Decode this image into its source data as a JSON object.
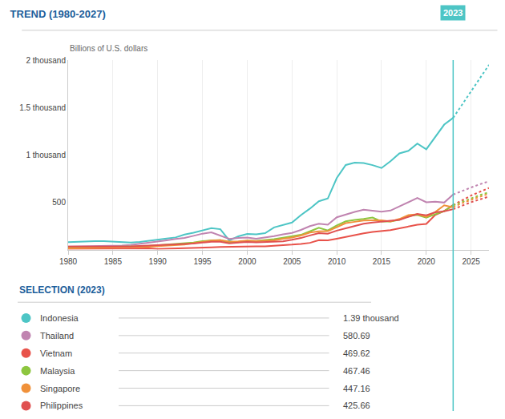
{
  "chart_data": {
    "type": "line",
    "title": "TREND (1980-2027)",
    "title_color": "#1B5E9B",
    "subtitle": "Billions of U.S. dollars",
    "xlim": [
      1980,
      2027
    ],
    "xticks": [
      1980,
      1985,
      1990,
      1995,
      2000,
      2005,
      2010,
      2015,
      2020,
      2025
    ],
    "ylim": [
      0,
      2000
    ],
    "yticks": [
      500,
      {
        "value": 1000,
        "label": "1 thousand"
      },
      {
        "value": 1500,
        "label": "1.5 thousand"
      },
      {
        "value": 2000,
        "label": "2 thousand"
      }
    ],
    "grid": "x",
    "vertical_line": {
      "x": 2023,
      "label": "2023",
      "color": "#4DC5C5"
    },
    "series": [
      {
        "name": "Indonesia",
        "color": "#4DC5C5",
        "line_style": "solid",
        "x": [
          1980,
          1981,
          1982,
          1983,
          1984,
          1985,
          1986,
          1987,
          1988,
          1989,
          1990,
          1991,
          1992,
          1993,
          1994,
          1995,
          1996,
          1997,
          1998,
          1999,
          2000,
          2001,
          2002,
          2003,
          2004,
          2005,
          2006,
          2007,
          2008,
          2009,
          2010,
          2011,
          2012,
          2013,
          2014,
          2015,
          2016,
          2017,
          2018,
          2019,
          2020,
          2021,
          2022,
          2023
        ],
        "values": [
          78,
          83,
          88,
          90,
          89,
          85,
          76,
          74,
          80,
          94,
          107,
          116,
          128,
          158,
          177,
          202,
          227,
          215,
          96,
          140,
          165,
          160,
          173,
          234,
          257,
          285,
          364,
          432,
          510,
          539,
          755,
          893,
          918,
          913,
          891,
          861,
          932,
          1015,
          1042,
          1119,
          1059,
          1186,
          1319,
          1390
        ]
      },
      {
        "name": "Indonesia",
        "color": "#4DC5C5",
        "line_style": "dotted",
        "x": [
          2023,
          2024,
          2025,
          2026,
          2027
        ],
        "values": [
          1390,
          1530,
          1680,
          1820,
          1950
        ]
      },
      {
        "name": "Thailand",
        "color": "#C084B0",
        "line_style": "solid",
        "x": [
          1980,
          1981,
          1982,
          1983,
          1984,
          1985,
          1986,
          1987,
          1988,
          1989,
          1990,
          1991,
          1992,
          1993,
          1994,
          1995,
          1996,
          1997,
          1998,
          1999,
          2000,
          2001,
          2002,
          2003,
          2004,
          2005,
          2006,
          2007,
          2008,
          2009,
          2010,
          2011,
          2012,
          2013,
          2014,
          2015,
          2016,
          2017,
          2018,
          2019,
          2020,
          2021,
          2022,
          2023
        ],
        "values": [
          32,
          34,
          36,
          38,
          41,
          38,
          43,
          49,
          60,
          70,
          85,
          98,
          112,
          122,
          145,
          168,
          182,
          150,
          112,
          122,
          126,
          115,
          126,
          142,
          161,
          176,
          207,
          247,
          272,
          263,
          341,
          370,
          397,
          420,
          407,
          400,
          412,
          456,
          505,
          544,
          499,
          506,
          496,
          581
        ]
      },
      {
        "name": "Thailand",
        "color": "#C084B0",
        "line_style": "dotted",
        "x": [
          2023,
          2024,
          2025,
          2026,
          2027
        ],
        "values": [
          581,
          620,
          655,
          690,
          720
        ]
      },
      {
        "name": "Vietnam",
        "color": "#E8524A",
        "line_style": "solid",
        "x": [
          1980,
          1981,
          1982,
          1983,
          1984,
          1985,
          1986,
          1987,
          1988,
          1989,
          1990,
          1991,
          1992,
          1993,
          1994,
          1995,
          1996,
          1997,
          1998,
          1999,
          2000,
          2001,
          2002,
          2003,
          2004,
          2005,
          2006,
          2007,
          2008,
          2009,
          2010,
          2011,
          2012,
          2013,
          2014,
          2015,
          2016,
          2017,
          2018,
          2019,
          2020,
          2021,
          2022,
          2023
        ],
        "values": [
          6,
          7,
          7,
          8,
          9,
          12,
          11,
          10,
          12,
          13,
          6,
          8,
          10,
          13,
          16,
          20,
          24,
          27,
          27,
          28,
          31,
          33,
          35,
          39,
          45,
          52,
          60,
          71,
          99,
          97,
          115,
          135,
          155,
          171,
          186,
          193,
          205,
          224,
          245,
          262,
          271,
          366,
          408,
          470
        ]
      },
      {
        "name": "Vietnam",
        "color": "#E8524A",
        "line_style": "dotted",
        "x": [
          2023,
          2024,
          2025,
          2026,
          2027
        ],
        "values": [
          470,
          520,
          570,
          610,
          650
        ]
      },
      {
        "name": "Malaysia",
        "color": "#8DC63F",
        "line_style": "solid",
        "x": [
          1980,
          1981,
          1982,
          1983,
          1984,
          1985,
          1986,
          1987,
          1988,
          1989,
          1990,
          1991,
          1992,
          1993,
          1994,
          1995,
          1996,
          1997,
          1998,
          1999,
          2000,
          2001,
          2002,
          2003,
          2004,
          2005,
          2006,
          2007,
          2008,
          2009,
          2010,
          2011,
          2012,
          2013,
          2014,
          2015,
          2016,
          2017,
          2018,
          2019,
          2020,
          2021,
          2022,
          2023
        ],
        "values": [
          24,
          25,
          26,
          28,
          30,
          31,
          28,
          31,
          35,
          38,
          44,
          52,
          60,
          66,
          74,
          88,
          98,
          100,
          72,
          79,
          94,
          92,
          100,
          110,
          124,
          137,
          156,
          193,
          230,
          202,
          255,
          298,
          314,
          323,
          338,
          296,
          296,
          314,
          354,
          365,
          336,
          373,
          406,
          467
        ]
      },
      {
        "name": "Malaysia",
        "color": "#8DC63F",
        "line_style": "dotted",
        "x": [
          2023,
          2024,
          2025,
          2026,
          2027
        ],
        "values": [
          467,
          505,
          540,
          575,
          605
        ]
      },
      {
        "name": "Singapore",
        "color": "#F0913A",
        "line_style": "solid",
        "x": [
          1980,
          1981,
          1982,
          1983,
          1984,
          1985,
          1986,
          1987,
          1988,
          1989,
          1990,
          1991,
          1992,
          1993,
          1994,
          1995,
          1996,
          1997,
          1998,
          1999,
          2000,
          2001,
          2002,
          2003,
          2004,
          2005,
          2006,
          2007,
          2008,
          2009,
          2010,
          2011,
          2012,
          2013,
          2014,
          2015,
          2016,
          2017,
          2018,
          2019,
          2020,
          2021,
          2022,
          2023
        ],
        "values": [
          12,
          14,
          16,
          17,
          19,
          18,
          18,
          21,
          26,
          29,
          37,
          41,
          46,
          54,
          67,
          84,
          95,
          100,
          85,
          86,
          96,
          89,
          92,
          97,
          114,
          127,
          148,
          180,
          193,
          194,
          237,
          279,
          293,
          307,
          308,
          308,
          297,
          323,
          364,
          373,
          345,
          397,
          467,
          447
        ]
      },
      {
        "name": "Singapore",
        "color": "#F0913A",
        "line_style": "dotted",
        "x": [
          2023,
          2024,
          2025,
          2026,
          2027
        ],
        "values": [
          447,
          490,
          525,
          560,
          590
        ]
      },
      {
        "name": "Philippines",
        "color": "#E05050",
        "line_style": "solid",
        "x": [
          1980,
          1981,
          1982,
          1983,
          1984,
          1985,
          1986,
          1987,
          1988,
          1989,
          1990,
          1991,
          1992,
          1993,
          1994,
          1995,
          1996,
          1997,
          1998,
          1999,
          2000,
          2001,
          2002,
          2003,
          2004,
          2005,
          2006,
          2007,
          2008,
          2009,
          2010,
          2011,
          2012,
          2013,
          2014,
          2015,
          2016,
          2017,
          2018,
          2019,
          2020,
          2021,
          2022,
          2023
        ],
        "values": [
          32,
          33,
          35,
          34,
          32,
          31,
          30,
          33,
          38,
          42,
          44,
          46,
          53,
          54,
          64,
          74,
          82,
          82,
          65,
          75,
          81,
          76,
          81,
          83,
          87,
          103,
          122,
          149,
          174,
          168,
          200,
          224,
          250,
          272,
          285,
          292,
          304,
          313,
          347,
          377,
          362,
          394,
          404,
          426
        ]
      },
      {
        "name": "Philippines",
        "color": "#E05050",
        "line_style": "dotted",
        "x": [
          2023,
          2024,
          2025,
          2026,
          2027
        ],
        "values": [
          426,
          465,
          500,
          530,
          560
        ]
      }
    ],
    "selection": {
      "title": "SELECTION (2023)",
      "title_color": "#1B5E9B",
      "categories": [
        "Indonesia",
        "Thailand",
        "Vietnam",
        "Malaysia",
        "Singapore",
        "Philippines"
      ],
      "values": [
        1390,
        580.69,
        469.62,
        467.46,
        447.16,
        425.66
      ],
      "value_labels": [
        "1.39 thousand",
        "580.69",
        "469.62",
        "467.46",
        "447.16",
        "425.66"
      ],
      "colors": [
        "#4DC5C5",
        "#C084B0",
        "#E8524A",
        "#8DC63F",
        "#F0913A",
        "#E05050"
      ]
    }
  }
}
